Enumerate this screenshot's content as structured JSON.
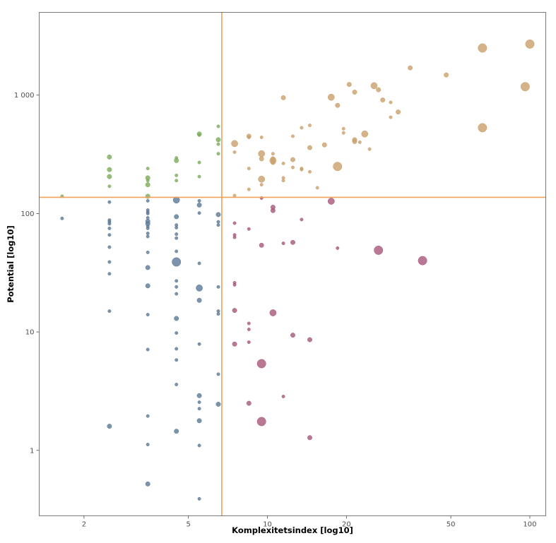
{
  "chart_data": {
    "type": "scatter",
    "title": "",
    "xlabel": "Komplexitetsindex [log10]",
    "ylabel": "Potential [log10]",
    "x_scale": "log10",
    "y_scale": "log10",
    "xlim": [
      1.35,
      115
    ],
    "ylim": [
      0.28,
      5000
    ],
    "x_ticks": [
      {
        "value": 2,
        "label": "2"
      },
      {
        "value": 5,
        "label": "5"
      },
      {
        "value": 10,
        "label": "10"
      },
      {
        "value": 20,
        "label": "20"
      },
      {
        "value": 50,
        "label": "50"
      },
      {
        "value": 100,
        "label": "100"
      }
    ],
    "y_ticks": [
      {
        "value": 1,
        "label": "1"
      },
      {
        "value": 10,
        "label": "10"
      },
      {
        "value": 100,
        "label": "100"
      },
      {
        "value": 1000,
        "label": "1 000"
      }
    ],
    "grid": false,
    "legend": "none",
    "reference_lines": {
      "x": 6.7,
      "y": 137,
      "color": "#f0a05a"
    },
    "colors": {
      "green": "#7aab5a",
      "blue": "#5b7996",
      "gold": "#c9a06b",
      "red": "#a8587a"
    },
    "series": [
      {
        "color_key": "green",
        "points": [
          [
            1.65,
            140,
            1
          ],
          [
            2.5,
            300,
            2
          ],
          [
            2.5,
            235,
            2
          ],
          [
            2.5,
            205,
            2
          ],
          [
            2.5,
            170,
            1
          ],
          [
            3.5,
            240,
            1
          ],
          [
            3.5,
            200,
            2
          ],
          [
            3.5,
            190,
            1
          ],
          [
            3.5,
            175,
            2
          ],
          [
            3.5,
            140,
            2
          ],
          [
            4.5,
            295,
            1
          ],
          [
            4.5,
            280,
            2
          ],
          [
            4.5,
            210,
            1
          ],
          [
            4.5,
            190,
            1
          ],
          [
            5.5,
            470,
            2
          ],
          [
            5.5,
            460,
            1
          ],
          [
            5.5,
            270,
            1
          ],
          [
            5.5,
            205,
            1
          ],
          [
            6.5,
            545,
            1
          ],
          [
            6.5,
            420,
            2
          ],
          [
            6.5,
            385,
            1
          ],
          [
            6.5,
            320,
            1
          ]
        ]
      },
      {
        "color_key": "blue",
        "points": [
          [
            1.65,
            91,
            1
          ],
          [
            2.5,
            125,
            1
          ],
          [
            2.5,
            88,
            1
          ],
          [
            2.5,
            85,
            1
          ],
          [
            2.5,
            82,
            1
          ],
          [
            2.5,
            75,
            1
          ],
          [
            2.5,
            66,
            1
          ],
          [
            2.5,
            52,
            1
          ],
          [
            2.5,
            39,
            1
          ],
          [
            2.5,
            31,
            1
          ],
          [
            2.5,
            15,
            1
          ],
          [
            2.5,
            1.6,
            2
          ],
          [
            3.5,
            128,
            1
          ],
          [
            3.5,
            107,
            1
          ],
          [
            3.5,
            103,
            1
          ],
          [
            3.5,
            100,
            1
          ],
          [
            3.5,
            92,
            1
          ],
          [
            3.5,
            86,
            2
          ],
          [
            3.5,
            82,
            2
          ],
          [
            3.5,
            78,
            1
          ],
          [
            3.5,
            75,
            1
          ],
          [
            3.5,
            68,
            1
          ],
          [
            3.5,
            64,
            1
          ],
          [
            3.5,
            47,
            1
          ],
          [
            3.5,
            35,
            2
          ],
          [
            3.5,
            24.5,
            2
          ],
          [
            3.5,
            14,
            1
          ],
          [
            3.5,
            7.1,
            1
          ],
          [
            3.5,
            1.95,
            1
          ],
          [
            3.5,
            1.12,
            1
          ],
          [
            3.5,
            0.52,
            2
          ],
          [
            4.5,
            130,
            3
          ],
          [
            4.5,
            94,
            2
          ],
          [
            4.5,
            80,
            1
          ],
          [
            4.5,
            76,
            1
          ],
          [
            4.5,
            67,
            1
          ],
          [
            4.5,
            62,
            1
          ],
          [
            4.5,
            48,
            1
          ],
          [
            4.5,
            39,
            4
          ],
          [
            4.5,
            27,
            1
          ],
          [
            4.5,
            24,
            1
          ],
          [
            4.5,
            21,
            1
          ],
          [
            4.5,
            13,
            2
          ],
          [
            4.5,
            9.8,
            1
          ],
          [
            4.5,
            7.2,
            1
          ],
          [
            4.5,
            5.8,
            1
          ],
          [
            4.5,
            3.6,
            1
          ],
          [
            4.5,
            1.45,
            2
          ],
          [
            5.5,
            128,
            1
          ],
          [
            5.5,
            118,
            2
          ],
          [
            5.5,
            101,
            1
          ],
          [
            5.5,
            38,
            1
          ],
          [
            5.5,
            23.5,
            3
          ],
          [
            5.5,
            18.5,
            2
          ],
          [
            5.5,
            7.9,
            1
          ],
          [
            5.5,
            2.9,
            2
          ],
          [
            5.5,
            2.55,
            1
          ],
          [
            5.5,
            2.25,
            1
          ],
          [
            5.5,
            1.78,
            2
          ],
          [
            5.5,
            1.1,
            1
          ],
          [
            5.5,
            0.39,
            1
          ],
          [
            6.5,
            98,
            2
          ],
          [
            6.5,
            85,
            1
          ],
          [
            6.5,
            80,
            1
          ],
          [
            6.5,
            24,
            1
          ],
          [
            6.5,
            15,
            1
          ],
          [
            6.5,
            14.2,
            1
          ],
          [
            6.5,
            4.4,
            1
          ],
          [
            6.5,
            2.45,
            2
          ]
        ]
      },
      {
        "color_key": "gold",
        "points": [
          [
            7.5,
            390,
            3
          ],
          [
            7.5,
            330,
            1
          ],
          [
            7.5,
            142,
            1
          ],
          [
            8.5,
            450,
            2
          ],
          [
            8.5,
            440,
            1
          ],
          [
            8.5,
            240,
            1
          ],
          [
            8.5,
            160,
            1
          ],
          [
            9.5,
            440,
            1
          ],
          [
            9.5,
            320,
            3
          ],
          [
            9.5,
            290,
            2
          ],
          [
            9.5,
            195,
            3
          ],
          [
            9.5,
            175,
            1
          ],
          [
            10.5,
            320,
            1
          ],
          [
            10.5,
            290,
            2
          ],
          [
            10.5,
            280,
            3
          ],
          [
            10.5,
            270,
            2
          ],
          [
            11.5,
            950,
            2
          ],
          [
            11.5,
            265,
            1
          ],
          [
            11.5,
            200,
            1
          ],
          [
            11.5,
            190,
            1
          ],
          [
            12.5,
            450,
            1
          ],
          [
            12.5,
            285,
            2
          ],
          [
            12.5,
            245,
            1
          ],
          [
            13.5,
            530,
            1
          ],
          [
            13.5,
            240,
            1
          ],
          [
            13.5,
            235,
            1
          ],
          [
            14.5,
            555,
            1
          ],
          [
            14.5,
            360,
            2
          ],
          [
            14.5,
            225,
            1
          ],
          [
            15.5,
            165,
            1
          ],
          [
            16.5,
            380,
            2
          ],
          [
            17.5,
            960,
            3
          ],
          [
            18.5,
            820,
            2
          ],
          [
            18.5,
            250,
            4
          ],
          [
            19.5,
            520,
            1
          ],
          [
            19.5,
            480,
            1
          ],
          [
            20.5,
            1230,
            2
          ],
          [
            21.5,
            1060,
            2
          ],
          [
            21.5,
            420,
            2
          ],
          [
            21.5,
            405,
            2
          ],
          [
            22.5,
            400,
            1
          ],
          [
            23.5,
            470,
            3
          ],
          [
            24.5,
            350,
            1
          ],
          [
            25.5,
            1200,
            3
          ],
          [
            26.5,
            1110,
            2
          ],
          [
            27.5,
            910,
            2
          ],
          [
            29.5,
            870,
            1
          ],
          [
            29.5,
            650,
            1
          ],
          [
            31.5,
            720,
            2
          ],
          [
            35,
            1700,
            2
          ],
          [
            48,
            1480,
            2
          ],
          [
            66,
            2500,
            4
          ],
          [
            66,
            530,
            4
          ],
          [
            96,
            1180,
            4
          ],
          [
            100,
            2700,
            4
          ]
        ]
      },
      {
        "color_key": "red",
        "points": [
          [
            7.5,
            83,
            1
          ],
          [
            7.5,
            66,
            1
          ],
          [
            7.5,
            63,
            1
          ],
          [
            7.5,
            26,
            1
          ],
          [
            7.5,
            25,
            1
          ],
          [
            7.5,
            15.2,
            2
          ],
          [
            7.5,
            7.9,
            2
          ],
          [
            8.5,
            74,
            1
          ],
          [
            8.5,
            11.8,
            1
          ],
          [
            8.5,
            10.5,
            1
          ],
          [
            8.5,
            8.2,
            1
          ],
          [
            8.5,
            2.5,
            2
          ],
          [
            9.5,
            135,
            1
          ],
          [
            9.5,
            54,
            2
          ],
          [
            9.5,
            5.4,
            4
          ],
          [
            9.5,
            1.75,
            4
          ],
          [
            10.5,
            113,
            2
          ],
          [
            10.5,
            106,
            2
          ],
          [
            10.5,
            14.5,
            3
          ],
          [
            11.5,
            56,
            1
          ],
          [
            11.5,
            2.85,
            1
          ],
          [
            12.5,
            57,
            2
          ],
          [
            12.5,
            9.4,
            2
          ],
          [
            13.5,
            89,
            1
          ],
          [
            14.5,
            8.6,
            2
          ],
          [
            14.5,
            1.28,
            2
          ],
          [
            17.5,
            127,
            3
          ],
          [
            18.5,
            51,
            1
          ],
          [
            26.5,
            49,
            4
          ],
          [
            39,
            40,
            4
          ]
        ]
      }
    ]
  }
}
